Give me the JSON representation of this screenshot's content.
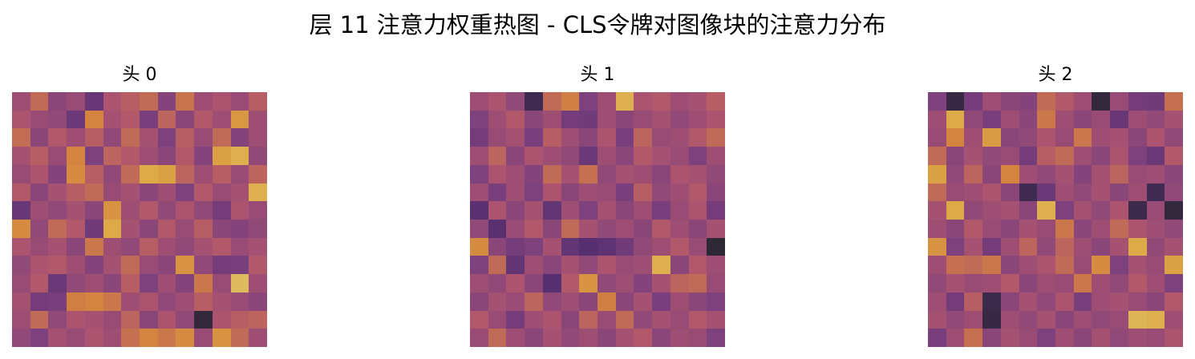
{
  "figure": {
    "title": "层 11 注意力权重热图 - CLS令牌对图像块的注意力分布"
  },
  "chart_data": [
    {
      "type": "heatmap",
      "title": "头 0",
      "colormap": "inferno",
      "vmin": 0,
      "vmax": 1,
      "grid": [
        14,
        14
      ],
      "values": [
        [
          0.5,
          0.62,
          0.44,
          0.48,
          0.3,
          0.54,
          0.58,
          0.62,
          0.42,
          0.65,
          0.5,
          0.54,
          0.48,
          0.58
        ],
        [
          0.54,
          0.48,
          0.46,
          0.32,
          0.7,
          0.52,
          0.56,
          0.38,
          0.6,
          0.44,
          0.56,
          0.5,
          0.75,
          0.5
        ],
        [
          0.63,
          0.44,
          0.56,
          0.5,
          0.58,
          0.46,
          0.62,
          0.52,
          0.4,
          0.58,
          0.48,
          0.62,
          0.42,
          0.5
        ],
        [
          0.52,
          0.58,
          0.48,
          0.7,
          0.4,
          0.6,
          0.56,
          0.5,
          0.44,
          0.56,
          0.42,
          0.78,
          0.82,
          0.46
        ],
        [
          0.48,
          0.54,
          0.42,
          0.72,
          0.58,
          0.46,
          0.62,
          0.8,
          0.78,
          0.6,
          0.5,
          0.58,
          0.48,
          0.6
        ],
        [
          0.56,
          0.44,
          0.52,
          0.58,
          0.62,
          0.48,
          0.52,
          0.44,
          0.5,
          0.4,
          0.56,
          0.48,
          0.52,
          0.82
        ],
        [
          0.3,
          0.5,
          0.46,
          0.52,
          0.44,
          0.74,
          0.5,
          0.56,
          0.46,
          0.54,
          0.46,
          0.36,
          0.54,
          0.48
        ],
        [
          0.72,
          0.46,
          0.62,
          0.56,
          0.34,
          0.8,
          0.52,
          0.44,
          0.56,
          0.48,
          0.58,
          0.44,
          0.42,
          0.46
        ],
        [
          0.54,
          0.48,
          0.52,
          0.44,
          0.66,
          0.5,
          0.46,
          0.58,
          0.5,
          0.46,
          0.52,
          0.56,
          0.48,
          0.52
        ],
        [
          0.46,
          0.54,
          0.56,
          0.5,
          0.42,
          0.52,
          0.62,
          0.48,
          0.44,
          0.74,
          0.46,
          0.36,
          0.38,
          0.56
        ],
        [
          0.48,
          0.56,
          0.32,
          0.46,
          0.5,
          0.44,
          0.58,
          0.4,
          0.5,
          0.42,
          0.66,
          0.48,
          0.86,
          0.5
        ],
        [
          0.52,
          0.36,
          0.38,
          0.68,
          0.7,
          0.66,
          0.5,
          0.54,
          0.46,
          0.5,
          0.58,
          0.52,
          0.48,
          0.44
        ],
        [
          0.5,
          0.62,
          0.46,
          0.54,
          0.52,
          0.48,
          0.6,
          0.44,
          0.54,
          0.46,
          0.06,
          0.54,
          0.58,
          0.6
        ],
        [
          0.46,
          0.4,
          0.52,
          0.48,
          0.54,
          0.5,
          0.64,
          0.7,
          0.66,
          0.72,
          0.48,
          0.74,
          0.62,
          0.5
        ]
      ]
    },
    {
      "type": "heatmap",
      "title": "头 1",
      "colormap": "inferno",
      "vmin": 0,
      "vmax": 1,
      "grid": [
        14,
        14
      ],
      "values": [
        [
          0.5,
          0.54,
          0.46,
          0.12,
          0.62,
          0.68,
          0.4,
          0.5,
          0.82,
          0.54,
          0.56,
          0.5,
          0.52,
          0.58
        ],
        [
          0.4,
          0.5,
          0.56,
          0.44,
          0.5,
          0.36,
          0.34,
          0.5,
          0.44,
          0.48,
          0.52,
          0.46,
          0.5,
          0.54
        ],
        [
          0.36,
          0.48,
          0.52,
          0.38,
          0.58,
          0.5,
          0.44,
          0.54,
          0.38,
          0.6,
          0.48,
          0.5,
          0.56,
          0.62
        ],
        [
          0.5,
          0.6,
          0.44,
          0.54,
          0.5,
          0.46,
          0.32,
          0.5,
          0.44,
          0.56,
          0.52,
          0.48,
          0.4,
          0.5
        ],
        [
          0.4,
          0.54,
          0.5,
          0.42,
          0.62,
          0.52,
          0.64,
          0.46,
          0.52,
          0.5,
          0.44,
          0.54,
          0.52,
          0.46
        ],
        [
          0.5,
          0.38,
          0.5,
          0.4,
          0.54,
          0.44,
          0.5,
          0.48,
          0.38,
          0.58,
          0.46,
          0.5,
          0.56,
          0.44
        ],
        [
          0.24,
          0.54,
          0.44,
          0.52,
          0.28,
          0.5,
          0.4,
          0.52,
          0.44,
          0.5,
          0.38,
          0.48,
          0.54,
          0.36
        ],
        [
          0.46,
          0.24,
          0.48,
          0.56,
          0.44,
          0.62,
          0.52,
          0.46,
          0.5,
          0.44,
          0.56,
          0.5,
          0.44,
          0.52
        ],
        [
          0.72,
          0.44,
          0.36,
          0.4,
          0.52,
          0.28,
          0.22,
          0.26,
          0.34,
          0.46,
          0.5,
          0.56,
          0.48,
          0.04
        ],
        [
          0.4,
          0.62,
          0.28,
          0.5,
          0.44,
          0.52,
          0.46,
          0.54,
          0.48,
          0.5,
          0.82,
          0.44,
          0.56,
          0.5
        ],
        [
          0.5,
          0.46,
          0.54,
          0.44,
          0.22,
          0.56,
          0.74,
          0.46,
          0.5,
          0.42,
          0.52,
          0.6,
          0.62,
          0.48
        ],
        [
          0.44,
          0.52,
          0.48,
          0.6,
          0.46,
          0.5,
          0.44,
          0.68,
          0.44,
          0.52,
          0.38,
          0.5,
          0.44,
          0.4
        ],
        [
          0.56,
          0.48,
          0.36,
          0.5,
          0.54,
          0.44,
          0.6,
          0.48,
          0.62,
          0.46,
          0.52,
          0.48,
          0.56,
          0.52
        ],
        [
          0.48,
          0.62,
          0.5,
          0.44,
          0.52,
          0.46,
          0.5,
          0.44,
          0.52,
          0.56,
          0.44,
          0.5,
          0.48,
          0.4
        ]
      ]
    },
    {
      "type": "heatmap",
      "title": "头 2",
      "colormap": "inferno",
      "vmin": 0,
      "vmax": 1,
      "grid": [
        14,
        14
      ],
      "values": [
        [
          0.4,
          0.08,
          0.36,
          0.5,
          0.44,
          0.42,
          0.62,
          0.56,
          0.5,
          0.06,
          0.48,
          0.36,
          0.34,
          0.64
        ],
        [
          0.5,
          0.8,
          0.46,
          0.38,
          0.5,
          0.44,
          0.66,
          0.5,
          0.44,
          0.48,
          0.3,
          0.5,
          0.46,
          0.52
        ],
        [
          0.48,
          0.7,
          0.5,
          0.76,
          0.44,
          0.46,
          0.54,
          0.48,
          0.66,
          0.5,
          0.52,
          0.44,
          0.54,
          0.46
        ],
        [
          0.62,
          0.44,
          0.52,
          0.46,
          0.48,
          0.36,
          0.58,
          0.62,
          0.5,
          0.44,
          0.54,
          0.4,
          0.32,
          0.56
        ],
        [
          0.78,
          0.46,
          0.6,
          0.44,
          0.7,
          0.5,
          0.46,
          0.52,
          0.42,
          0.52,
          0.6,
          0.48,
          0.5,
          0.44
        ],
        [
          0.62,
          0.48,
          0.5,
          0.54,
          0.44,
          0.12,
          0.32,
          0.5,
          0.46,
          0.52,
          0.44,
          0.5,
          0.12,
          0.46
        ],
        [
          0.52,
          0.8,
          0.46,
          0.5,
          0.52,
          0.44,
          0.82,
          0.4,
          0.52,
          0.46,
          0.54,
          0.1,
          0.48,
          0.06
        ],
        [
          0.5,
          0.44,
          0.56,
          0.48,
          0.44,
          0.52,
          0.48,
          0.66,
          0.44,
          0.5,
          0.62,
          0.54,
          0.5,
          0.46
        ],
        [
          0.74,
          0.4,
          0.52,
          0.36,
          0.5,
          0.6,
          0.46,
          0.6,
          0.5,
          0.44,
          0.52,
          0.8,
          0.46,
          0.52
        ],
        [
          0.5,
          0.64,
          0.62,
          0.66,
          0.44,
          0.5,
          0.54,
          0.62,
          0.48,
          0.72,
          0.4,
          0.52,
          0.48,
          0.78
        ],
        [
          0.46,
          0.52,
          0.48,
          0.5,
          0.56,
          0.44,
          0.5,
          0.48,
          0.66,
          0.5,
          0.46,
          0.56,
          0.5,
          0.4
        ],
        [
          0.5,
          0.36,
          0.58,
          0.1,
          0.44,
          0.52,
          0.46,
          0.54,
          0.38,
          0.5,
          0.52,
          0.48,
          0.44,
          0.56
        ],
        [
          0.52,
          0.46,
          0.5,
          0.08,
          0.5,
          0.46,
          0.52,
          0.44,
          0.5,
          0.46,
          0.48,
          0.84,
          0.82,
          0.5
        ],
        [
          0.38,
          0.5,
          0.64,
          0.44,
          0.52,
          0.48,
          0.4,
          0.5,
          0.44,
          0.52,
          0.46,
          0.5,
          0.48,
          0.54
        ]
      ]
    }
  ]
}
